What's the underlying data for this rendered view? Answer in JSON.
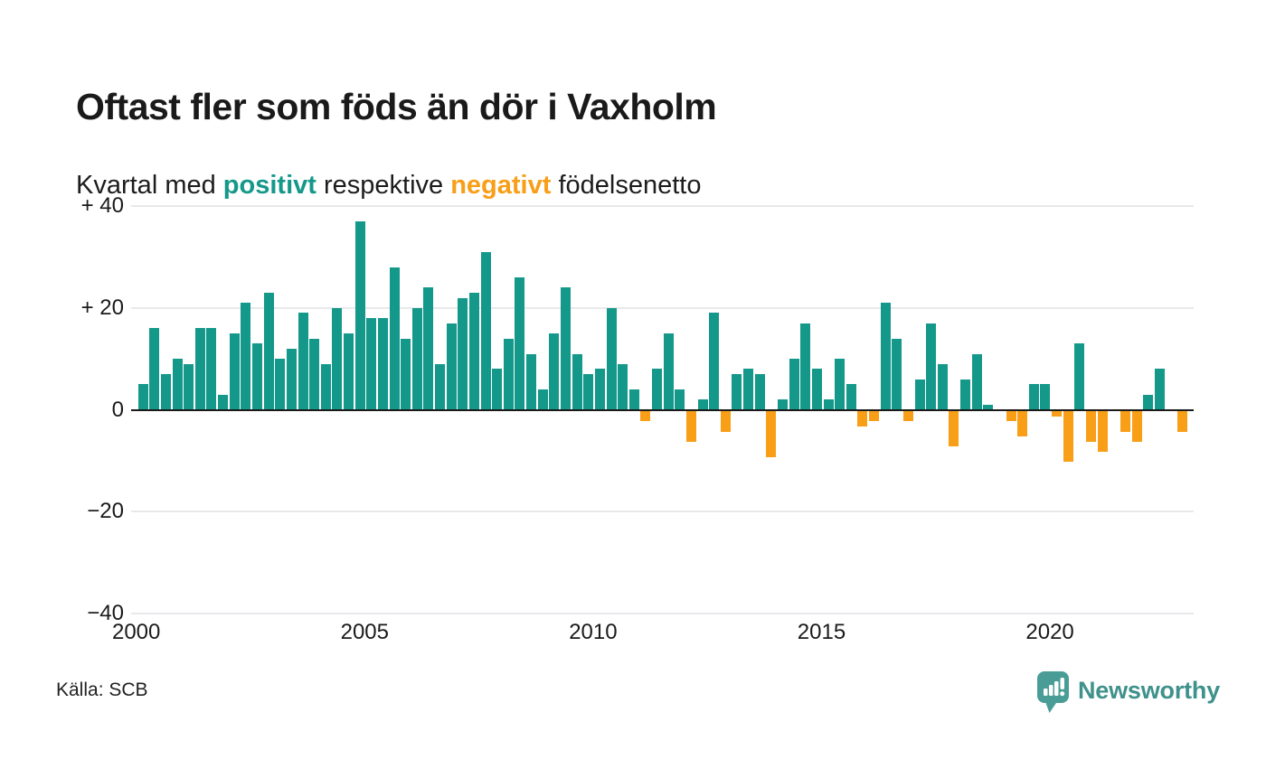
{
  "header": {
    "title": "Oftast fler som föds än dör i Vaxholm",
    "subtitle": {
      "pre": "Kvartal med ",
      "positive_word": "positivt",
      "mid": " respektive ",
      "negative_word": "negativt",
      "post": " födelsenetto"
    }
  },
  "footer": {
    "source": "Källa: SCB",
    "brand_name": "Newsworthy"
  },
  "colors": {
    "positive": "#14988a",
    "negative": "#f89e17",
    "grid": "#e9e9ec",
    "axis": "#1a1a1a",
    "logo_bubble": "#4a9d97",
    "logo_wordmark": "#3f918b"
  },
  "chart_data": {
    "type": "bar",
    "title": "Oftast fler som föds än dör i Vaxholm",
    "subtitle": "Kvartal med positivt respektive negativt födelsenetto",
    "unit": "födelsenetto per kvartal (antal personer)",
    "x_start": "2000 Q1",
    "x_end": "2022 Q4",
    "ylim": [
      -40,
      40
    ],
    "grid": true,
    "legend_position": "none",
    "yticks": [
      {
        "value": 40,
        "label": "+ 40"
      },
      {
        "value": 20,
        "label": "+ 20"
      },
      {
        "value": 0,
        "label": "0"
      },
      {
        "value": -20,
        "label": "−20"
      },
      {
        "value": -40,
        "label": "−40"
      }
    ],
    "xticks": [
      {
        "label": "2000",
        "year": 2000
      },
      {
        "label": "2005",
        "year": 2005
      },
      {
        "label": "2010",
        "year": 2010
      },
      {
        "label": "2015",
        "year": 2015
      },
      {
        "label": "2020",
        "year": 2020
      }
    ],
    "series_name": "Födelsenetto",
    "values_by_year": {
      "2000": [
        5,
        16,
        7,
        10
      ],
      "2001": [
        9,
        16,
        16,
        3
      ],
      "2002": [
        15,
        21,
        13,
        23
      ],
      "2003": [
        10,
        12,
        19,
        14
      ],
      "2004": [
        9,
        20,
        15,
        37
      ],
      "2005": [
        18,
        18,
        28,
        14
      ],
      "2006": [
        20,
        24,
        9,
        17
      ],
      "2007": [
        22,
        23,
        31,
        8
      ],
      "2008": [
        14,
        26,
        11,
        4
      ],
      "2009": [
        15,
        24,
        11,
        7
      ],
      "2010": [
        8,
        20,
        9,
        4
      ],
      "2011": [
        -2,
        8,
        15,
        4
      ],
      "2012": [
        -6,
        2,
        19,
        -4
      ],
      "2013": [
        7,
        8,
        7,
        -9
      ],
      "2014": [
        2,
        10,
        17,
        8
      ],
      "2015": [
        2,
        10,
        5,
        -3
      ],
      "2016": [
        -2,
        21,
        14,
        -2
      ],
      "2017": [
        6,
        17,
        9,
        -7
      ],
      "2018": [
        6,
        11,
        1,
        0
      ],
      "2019": [
        -2,
        -5,
        5,
        5
      ],
      "2020": [
        -1,
        -10,
        13,
        -6
      ],
      "2021": [
        -8,
        0,
        -4,
        -6
      ],
      "2022": [
        3,
        8,
        0,
        -4
      ]
    }
  }
}
